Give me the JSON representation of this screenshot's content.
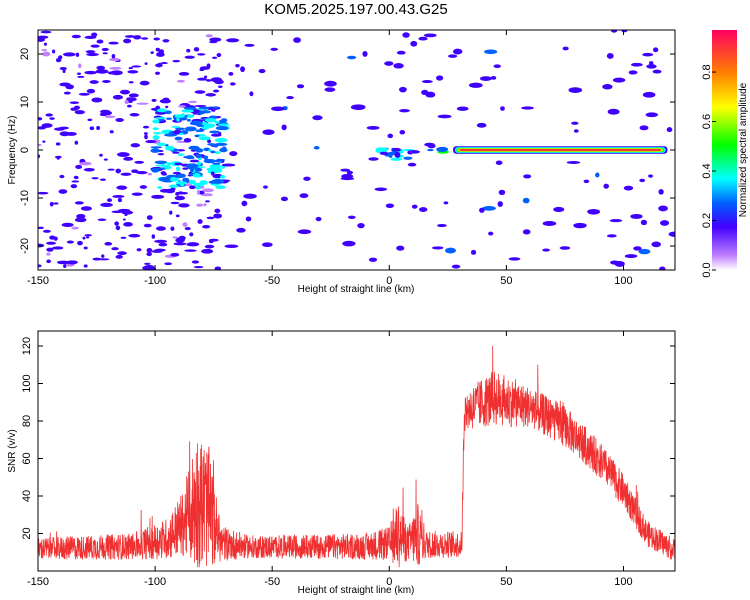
{
  "title": "KOM5.2025.197.00.43.G25",
  "chart_data": [
    {
      "type": "heatmap",
      "xlabel": "Height of straight line (km)",
      "ylabel": "Frequency (Hz)",
      "xlim": [
        -150,
        122
      ],
      "ylim": [
        -25,
        25
      ],
      "xticks": [
        -150,
        -100,
        -50,
        0,
        50,
        100
      ],
      "yticks": [
        -20,
        -10,
        0,
        10,
        20
      ],
      "colorbar": {
        "label": "Normalized spectral amplitude",
        "range": [
          0,
          0.97
        ],
        "ticks": [
          0.0,
          0.2,
          0.4,
          0.6,
          0.8
        ],
        "colormap": [
          "#ffffff",
          "#a040ff",
          "#0000ff",
          "#00ffff",
          "#00ff00",
          "#ffff00",
          "#ff8000",
          "#ff0040"
        ]
      },
      "features": [
        {
          "x_range": [
            -150,
            -72
          ],
          "y_range": [
            -25,
            25
          ],
          "amplitude": 0.1
        },
        {
          "x_range": [
            -100,
            -70
          ],
          "y_range": [
            -8,
            9
          ],
          "amplitude": 0.3
        },
        {
          "x_range": [
            -5,
            12
          ],
          "y_range": [
            -2,
            0.5
          ],
          "amplitude": 0.3
        },
        {
          "x_range": [
            17,
            26
          ],
          "y_range": [
            -0.5,
            0.8
          ],
          "amplitude": 0.35
        },
        {
          "x_range": [
            28,
            118
          ],
          "y_range": [
            -0.6,
            0.6
          ],
          "amplitude": 0.95
        }
      ]
    },
    {
      "type": "line",
      "xlabel": "Height of straight line (km)",
      "ylabel": "SNR (v/v)",
      "xlim": [
        -150,
        122
      ],
      "ylim": [
        0,
        128
      ],
      "xticks": [
        -150,
        -100,
        -50,
        0,
        50,
        100
      ],
      "yticks": [
        20,
        40,
        60,
        80,
        100,
        120
      ],
      "color": "#f03030",
      "profile": [
        {
          "x": -150,
          "base": 10,
          "spread": 12
        },
        {
          "x": -110,
          "base": 11,
          "spread": 14
        },
        {
          "x": -95,
          "base": 14,
          "spread": 22
        },
        {
          "x": -88,
          "base": 20,
          "spread": 35
        },
        {
          "x": -82,
          "base": 26,
          "spread": 75
        },
        {
          "x": -77,
          "base": 24,
          "spread": 65
        },
        {
          "x": -72,
          "base": 12,
          "spread": 20
        },
        {
          "x": -60,
          "base": 11,
          "spread": 12
        },
        {
          "x": -10,
          "base": 11,
          "spread": 14
        },
        {
          "x": 0,
          "base": 12,
          "spread": 18
        },
        {
          "x": 4,
          "base": 14,
          "spread": 38
        },
        {
          "x": 8,
          "base": 12,
          "spread": 18
        },
        {
          "x": 12,
          "base": 14,
          "spread": 35
        },
        {
          "x": 16,
          "base": 12,
          "spread": 15
        },
        {
          "x": 31,
          "base": 12,
          "spread": 14
        },
        {
          "x": 32,
          "base": 82,
          "spread": 22
        },
        {
          "x": 45,
          "base": 88,
          "spread": 30
        },
        {
          "x": 60,
          "base": 84,
          "spread": 22
        },
        {
          "x": 75,
          "base": 74,
          "spread": 22
        },
        {
          "x": 90,
          "base": 56,
          "spread": 20
        },
        {
          "x": 100,
          "base": 40,
          "spread": 18
        },
        {
          "x": 110,
          "base": 18,
          "spread": 14
        },
        {
          "x": 122,
          "base": 9,
          "spread": 12
        }
      ]
    }
  ]
}
